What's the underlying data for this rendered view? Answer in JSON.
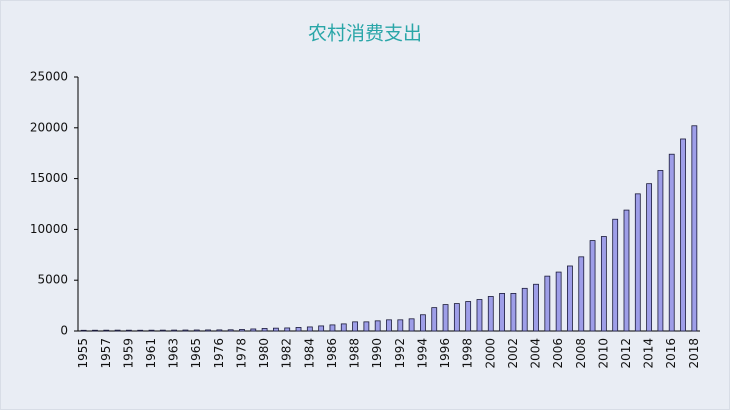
{
  "chart_data": {
    "type": "bar",
    "title": "农村消费支出",
    "categories": [
      "1955",
      null,
      "1957",
      null,
      "1959",
      null,
      "1961",
      null,
      "1963",
      null,
      "1965",
      null,
      "1976",
      null,
      "1978",
      null,
      "1980",
      null,
      "1982",
      null,
      "1984",
      null,
      "1986",
      null,
      "1988",
      null,
      "1990",
      null,
      "1992",
      null,
      "1994",
      null,
      "1996",
      null,
      "1998",
      null,
      "2000",
      null,
      "2002",
      null,
      "2004",
      null,
      "2006",
      null,
      "2008",
      null,
      "2010",
      null,
      "2012",
      null,
      "2014",
      null,
      "2016",
      null,
      "2018"
    ],
    "values": [
      70,
      75,
      80,
      85,
      80,
      75,
      80,
      85,
      90,
      95,
      100,
      105,
      110,
      120,
      150,
      200,
      250,
      280,
      300,
      350,
      400,
      500,
      600,
      700,
      900,
      900,
      1000,
      1100,
      1100,
      1200,
      1600,
      2300,
      2600,
      2700,
      2900,
      3100,
      3400,
      3700,
      3700,
      4200,
      4600,
      5400,
      5800,
      6400,
      7300,
      8900,
      9300,
      11000,
      11900,
      13500,
      14500,
      15800,
      17400,
      18900,
      20200
    ],
    "color": "#9e9ee8",
    "ylim": [
      0,
      25000
    ],
    "yticks": [
      0,
      5000,
      10000,
      15000,
      20000,
      25000
    ]
  }
}
